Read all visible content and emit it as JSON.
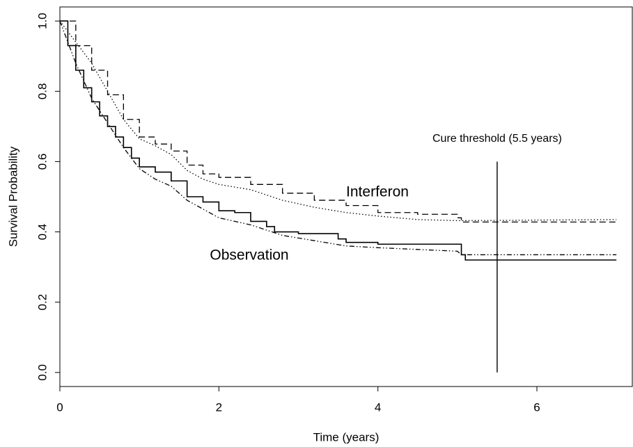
{
  "chart_data": {
    "type": "line",
    "x_label": "Time (years)",
    "y_label": "Survival Probability",
    "xlim": [
      0,
      7.2
    ],
    "ylim": [
      -0.04,
      1.04
    ],
    "xticks": [
      0,
      2,
      4,
      6
    ],
    "yticks": [
      {
        "value": 0,
        "label": "0.0"
      },
      {
        "value": 0.2,
        "label": "0.2"
      },
      {
        "value": 0.4,
        "label": "0.4"
      },
      {
        "value": 0.6,
        "label": "0.6"
      },
      {
        "value": 0.8,
        "label": "0.8"
      },
      {
        "value": 1,
        "label": "1.0"
      }
    ],
    "grid": false,
    "series": [
      {
        "color": "#000000",
        "dash": "solid",
        "step": true,
        "x": [
          0,
          0.1,
          0.2,
          0.3,
          0.4,
          0.5,
          0.6,
          0.7,
          0.8,
          0.9,
          1.0,
          1.2,
          1.4,
          1.6,
          1.8,
          2.0,
          2.2,
          2.4,
          2.6,
          2.7,
          3.0,
          3.5,
          3.6,
          4.0,
          4.5,
          5.0,
          5.05,
          5.1,
          7.0
        ],
        "values": [
          1.0,
          0.93,
          0.86,
          0.81,
          0.77,
          0.73,
          0.7,
          0.67,
          0.64,
          0.61,
          0.585,
          0.57,
          0.545,
          0.5,
          0.485,
          0.46,
          0.455,
          0.43,
          0.415,
          0.4,
          0.395,
          0.38,
          0.37,
          0.365,
          0.365,
          0.365,
          0.335,
          0.32,
          0.32
        ]
      },
      {
        "color": "#000000",
        "dash": "dashdotdot",
        "step": false,
        "x": [
          0,
          0.2,
          0.4,
          0.6,
          0.8,
          1.0,
          1.2,
          1.4,
          1.6,
          1.8,
          2.0,
          2.4,
          2.8,
          3.2,
          3.6,
          4.0,
          4.5,
          5.0,
          5.05,
          7.0
        ],
        "values": [
          1.0,
          0.88,
          0.78,
          0.71,
          0.64,
          0.58,
          0.55,
          0.53,
          0.49,
          0.465,
          0.44,
          0.42,
          0.39,
          0.375,
          0.36,
          0.355,
          0.35,
          0.345,
          0.335,
          0.335
        ]
      },
      {
        "color": "#000000",
        "dash": "dashed",
        "step": true,
        "x": [
          0,
          0.2,
          0.4,
          0.6,
          0.8,
          1.0,
          1.2,
          1.4,
          1.6,
          1.8,
          2.0,
          2.4,
          2.8,
          3.2,
          3.6,
          4.0,
          4.5,
          5.0,
          5.05,
          7.0
        ],
        "values": [
          1.0,
          0.93,
          0.86,
          0.79,
          0.72,
          0.67,
          0.65,
          0.63,
          0.59,
          0.565,
          0.555,
          0.535,
          0.51,
          0.49,
          0.475,
          0.455,
          0.45,
          0.44,
          0.428,
          0.428
        ]
      },
      {
        "color": "#000000",
        "dash": "dotted",
        "step": false,
        "x": [
          0,
          0.2,
          0.4,
          0.6,
          0.8,
          1.0,
          1.2,
          1.4,
          1.6,
          1.8,
          2.0,
          2.4,
          2.8,
          3.2,
          3.6,
          4.0,
          4.5,
          5.0,
          7.0
        ],
        "values": [
          1.0,
          0.94,
          0.88,
          0.8,
          0.72,
          0.665,
          0.645,
          0.62,
          0.575,
          0.55,
          0.535,
          0.52,
          0.49,
          0.47,
          0.455,
          0.445,
          0.435,
          0.432,
          0.435
        ]
      }
    ],
    "reference_line": {
      "x": 5.5,
      "y": [
        0,
        0.6
      ],
      "label": "Cure threshold (5.5 years)"
    },
    "annotations": [
      "Interferon",
      "Observation"
    ]
  }
}
